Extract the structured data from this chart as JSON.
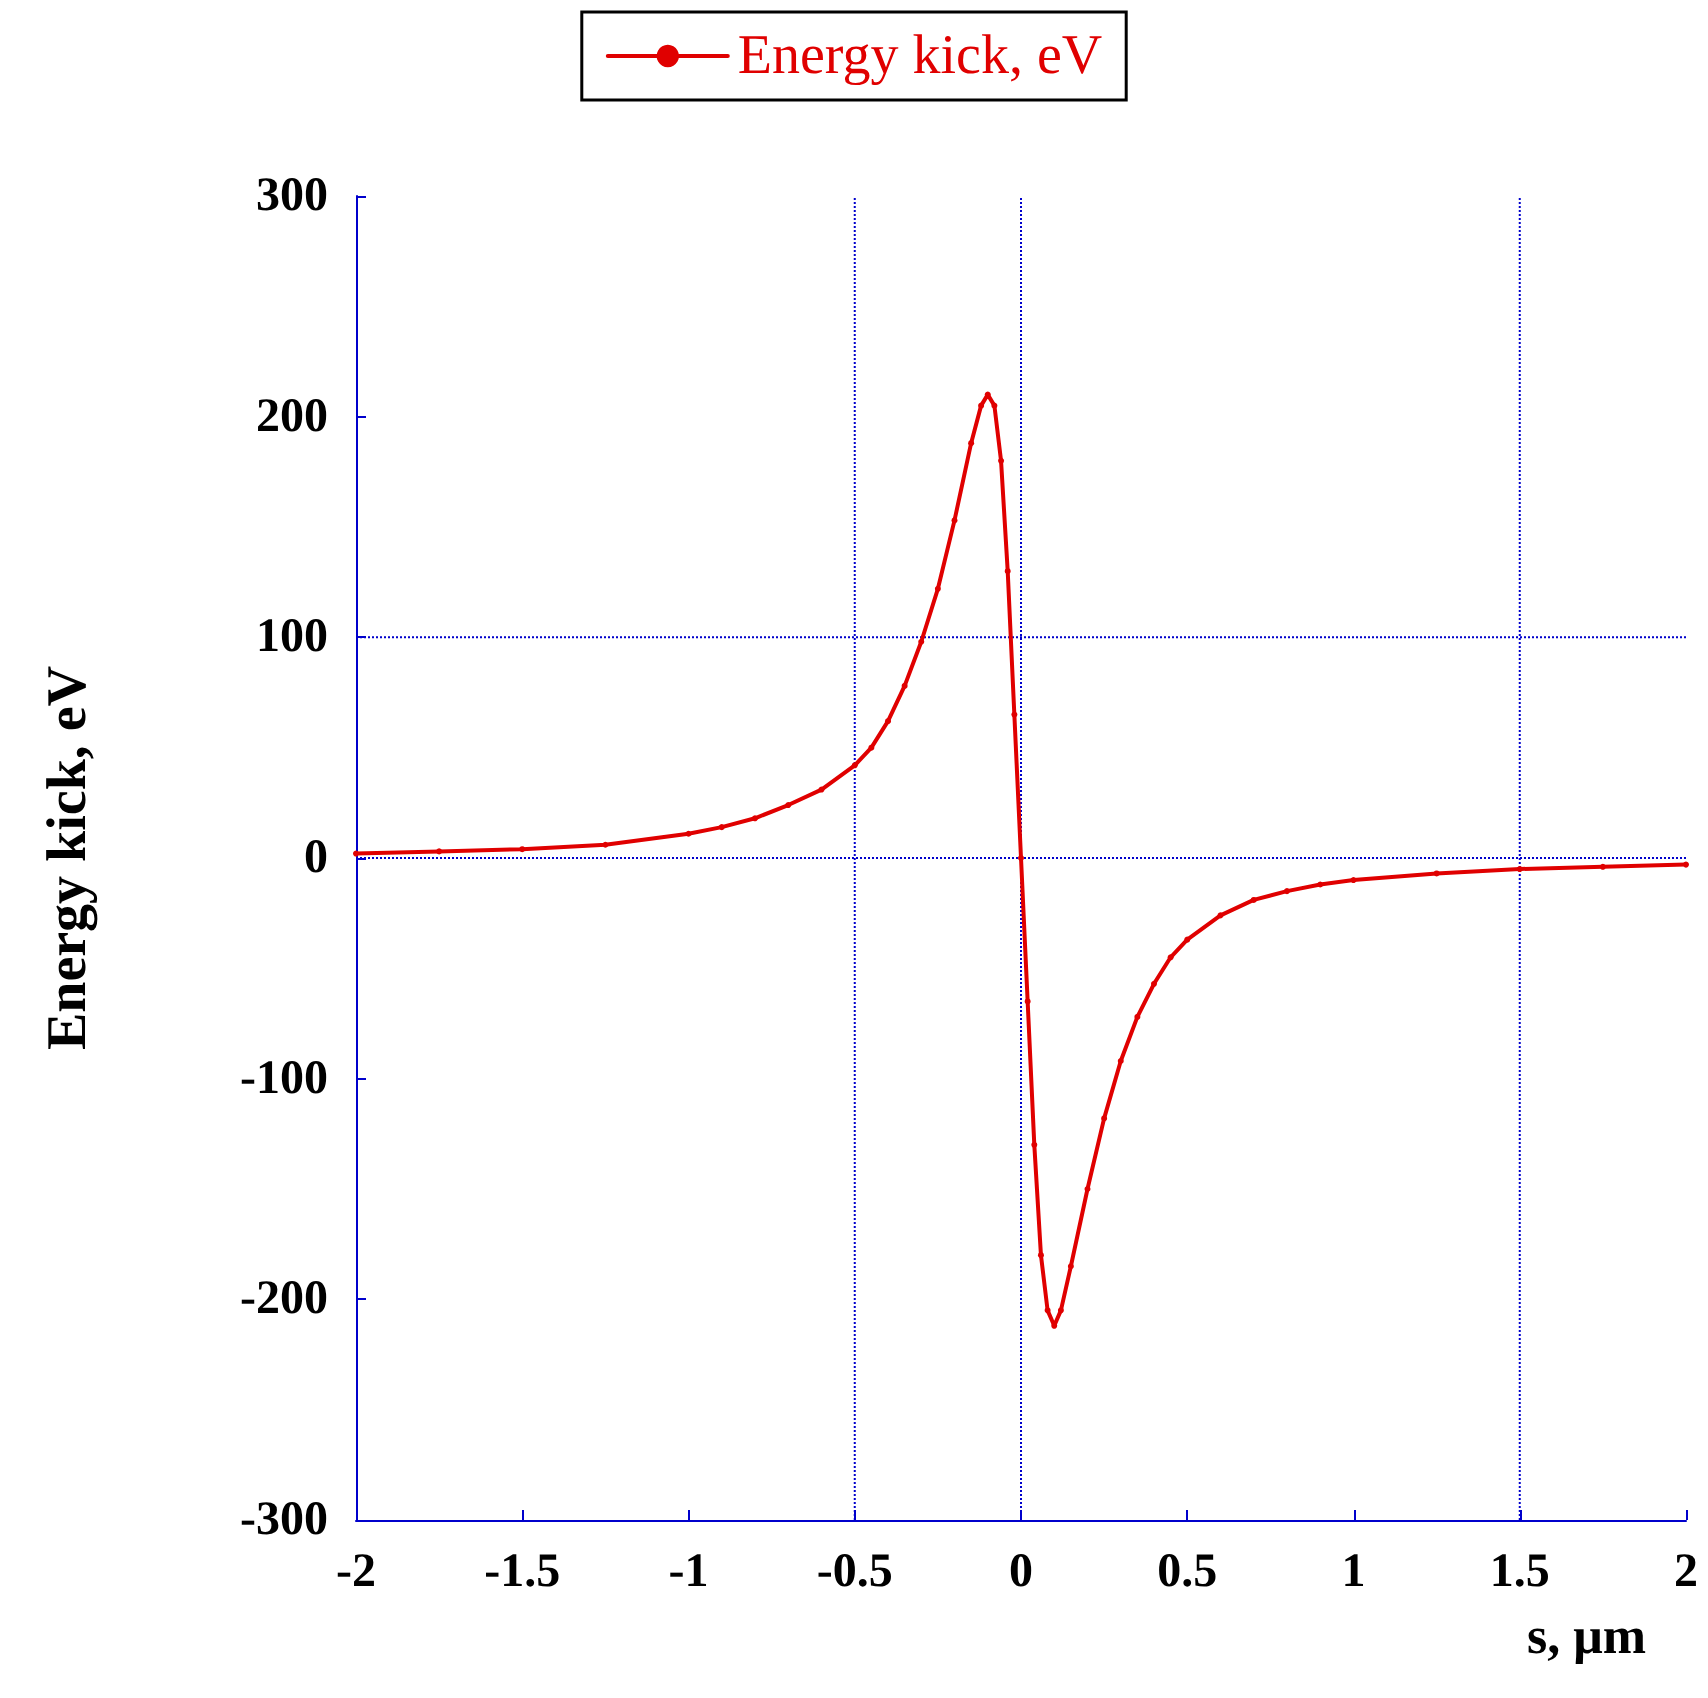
{
  "chart_data": {
    "type": "line",
    "xlabel": "s, μm",
    "ylabel": "Energy kick, eV",
    "x": [
      -2,
      -1.75,
      -1.5,
      -1.25,
      -1,
      -0.9,
      -0.8,
      -0.7,
      -0.6,
      -0.5,
      -0.45,
      -0.4,
      -0.35,
      -0.3,
      -0.25,
      -0.2,
      -0.15,
      -0.12,
      -0.1,
      -0.08,
      -0.06,
      -0.04,
      -0.02,
      0,
      0.02,
      0.04,
      0.06,
      0.08,
      0.1,
      0.12,
      0.15,
      0.2,
      0.25,
      0.3,
      0.35,
      0.4,
      0.45,
      0.5,
      0.6,
      0.7,
      0.8,
      0.9,
      1,
      1.25,
      1.5,
      1.75,
      2
    ],
    "series": [
      {
        "name": "Energy kick, eV",
        "color": "#e00000",
        "values": [
          2,
          3,
          4,
          6,
          11,
          14,
          18,
          24,
          31,
          42,
          50,
          62,
          78,
          98,
          122,
          153,
          188,
          205,
          210,
          205,
          180,
          130,
          65,
          0,
          -65,
          -130,
          -180,
          -205,
          -212,
          -205,
          -185,
          -150,
          -118,
          -92,
          -72,
          -57,
          -45,
          -37,
          -26,
          -19,
          -15,
          -12,
          -10,
          -7,
          -5,
          -4,
          -3
        ]
      }
    ],
    "xlim": [
      -2,
      2
    ],
    "xticks": [
      -2,
      -1.5,
      -1,
      -0.5,
      0,
      0.5,
      1,
      1.5,
      2
    ],
    "ylim": [
      -300,
      300
    ],
    "yticks": [
      -300,
      -200,
      -100,
      0,
      100,
      200,
      300
    ],
    "ref_lines": [
      {
        "axis": "x",
        "value": -0.5,
        "color": "#0000cc",
        "line_style": "dotted"
      },
      {
        "axis": "x",
        "value": 0,
        "color": "#0000cc",
        "line_style": "dotted"
      },
      {
        "axis": "x",
        "value": 1.5,
        "color": "#0000cc",
        "line_style": "dotted"
      },
      {
        "axis": "y",
        "value": 100,
        "color": "#0000cc",
        "line_style": "dotted"
      },
      {
        "axis": "y",
        "value": 0,
        "color": "#0000cc",
        "line_style": "dotted"
      }
    ],
    "legend": "top",
    "marker": "circle",
    "line_style": "solid"
  }
}
